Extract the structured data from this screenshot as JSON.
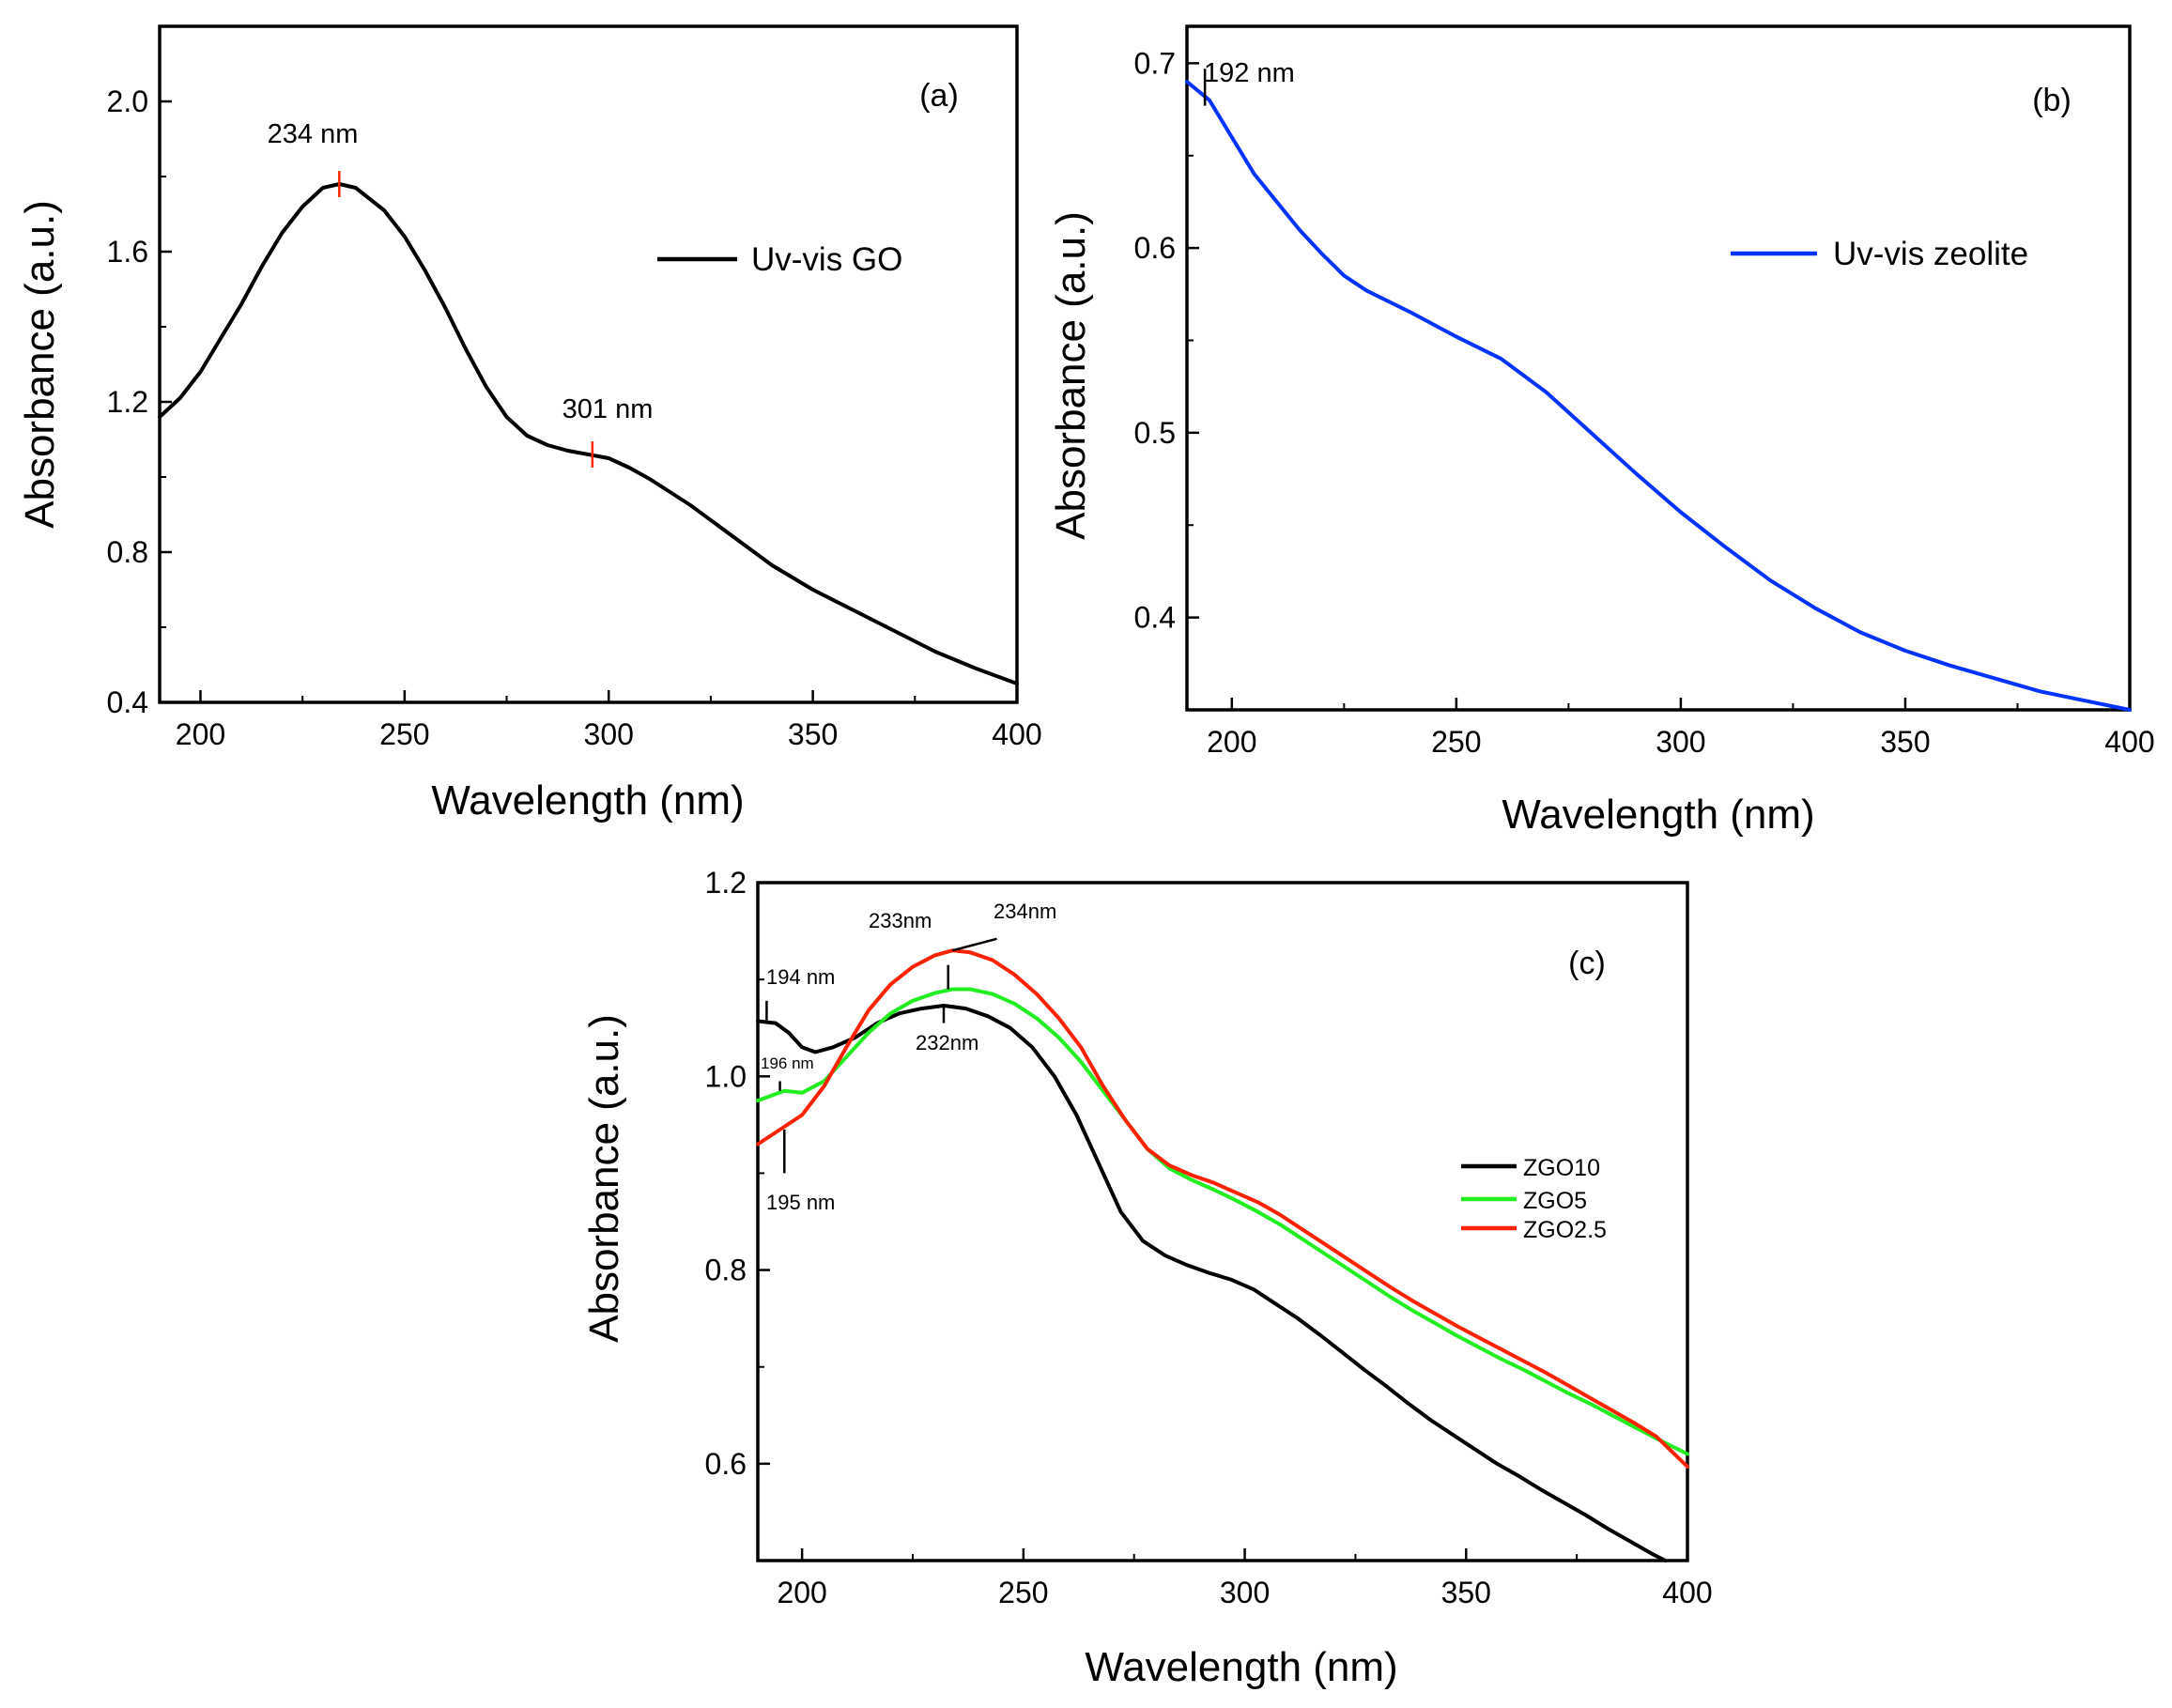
{
  "chart_data": [
    {
      "type": "line",
      "panel_label": "(a)",
      "xlabel": "Wavelength (nm)",
      "ylabel": "Absorbance (a.u.)",
      "xlim": [
        190,
        400
      ],
      "ylim": [
        0.4,
        2.2
      ],
      "xticks": [
        200,
        250,
        300,
        350,
        400
      ],
      "xtick_labels": [
        "200",
        "250",
        "300",
        "350",
        "400"
      ],
      "yticks": [
        0.4,
        0.8,
        1.2,
        1.6,
        2.0
      ],
      "ytick_labels": [
        "0.4",
        "0.8",
        "1.2",
        "1.6",
        "2.0"
      ],
      "grid": false,
      "legend_position": "top-right",
      "series": [
        {
          "name": "Uv-vis GO",
          "color": "#000000",
          "x": [
            190,
            195,
            200,
            205,
            210,
            215,
            220,
            225,
            230,
            234,
            238,
            245,
            250,
            255,
            260,
            265,
            270,
            275,
            280,
            285,
            290,
            295,
            300,
            305,
            310,
            315,
            320,
            330,
            340,
            350,
            360,
            370,
            380,
            390,
            400
          ],
          "y": [
            1.16,
            1.21,
            1.28,
            1.37,
            1.46,
            1.56,
            1.65,
            1.72,
            1.77,
            1.78,
            1.77,
            1.71,
            1.64,
            1.55,
            1.45,
            1.34,
            1.24,
            1.16,
            1.11,
            1.085,
            1.07,
            1.06,
            1.05,
            1.025,
            0.995,
            0.96,
            0.925,
            0.845,
            0.765,
            0.7,
            0.645,
            0.59,
            0.535,
            0.49,
            0.45
          ]
        }
      ],
      "annotations": [
        {
          "text": "234 nm",
          "x": 234,
          "y": 1.78,
          "marker_color": "#ff2a00"
        },
        {
          "text": "301 nm",
          "x": 296,
          "y": 1.06,
          "marker_color": "#ff2a00"
        }
      ]
    },
    {
      "type": "line",
      "panel_label": "(b)",
      "xlabel": "Wavelength (nm)",
      "ylabel": "Absorbance (a.u.)",
      "xlim": [
        190,
        400
      ],
      "ylim": [
        0.35,
        0.72
      ],
      "xticks": [
        200,
        250,
        300,
        350,
        400
      ],
      "xtick_labels": [
        "200",
        "250",
        "300",
        "350",
        "400"
      ],
      "yticks": [
        0.4,
        0.5,
        0.6,
        0.7
      ],
      "ytick_labels": [
        "0.4",
        "0.5",
        "0.6",
        "0.7"
      ],
      "grid": false,
      "legend_position": "top-right",
      "series": [
        {
          "name": "Uv-vis zeolite",
          "color": "#0033ff",
          "x": [
            190,
            195,
            200,
            205,
            210,
            215,
            220,
            225,
            230,
            240,
            250,
            260,
            270,
            280,
            290,
            300,
            310,
            320,
            330,
            340,
            350,
            360,
            370,
            380,
            390,
            400
          ],
          "y": [
            0.69,
            0.68,
            0.66,
            0.64,
            0.625,
            0.61,
            0.597,
            0.585,
            0.577,
            0.565,
            0.552,
            0.54,
            0.522,
            0.5,
            0.478,
            0.457,
            0.438,
            0.42,
            0.405,
            0.392,
            0.382,
            0.374,
            0.367,
            0.36,
            0.355,
            0.35
          ]
        }
      ],
      "annotations": [
        {
          "text": "192 nm",
          "x": 194,
          "y": 0.685,
          "marker_color": "#000000"
        }
      ]
    },
    {
      "type": "line",
      "panel_label": "(c)",
      "xlabel": "Wavelength (nm)",
      "ylabel": "Absorbance (a.u.)",
      "xlim": [
        190,
        400
      ],
      "ylim": [
        0.5,
        1.2
      ],
      "xticks": [
        200,
        250,
        300,
        350,
        400
      ],
      "xtick_labels": [
        "200",
        "250",
        "300",
        "350",
        "400"
      ],
      "yticks": [
        0.6,
        0.8,
        1.0,
        1.2
      ],
      "ytick_labels": [
        "0.6",
        "0.8",
        "1.0",
        "1.2"
      ],
      "grid": false,
      "legend_position": "right",
      "series": [
        {
          "name": "ZGO10",
          "color": "#000000",
          "x": [
            190,
            194,
            197,
            200,
            203,
            207,
            212,
            217,
            222,
            227,
            232,
            237,
            242,
            247,
            252,
            257,
            262,
            267,
            272,
            277,
            282,
            287,
            292,
            297,
            302,
            307,
            312,
            317,
            322,
            327,
            332,
            337,
            342,
            347,
            352,
            357,
            362,
            367,
            372,
            377,
            382,
            387,
            392,
            395
          ],
          "y": [
            1.057,
            1.055,
            1.045,
            1.03,
            1.025,
            1.03,
            1.04,
            1.055,
            1.065,
            1.07,
            1.073,
            1.07,
            1.062,
            1.05,
            1.03,
            1.0,
            0.96,
            0.91,
            0.86,
            0.83,
            0.815,
            0.805,
            0.797,
            0.79,
            0.78,
            0.765,
            0.75,
            0.733,
            0.715,
            0.697,
            0.68,
            0.662,
            0.645,
            0.63,
            0.615,
            0.6,
            0.587,
            0.573,
            0.56,
            0.547,
            0.533,
            0.52,
            0.507,
            0.5
          ]
        },
        {
          "name": "ZGO5",
          "color": "#22ee22",
          "x": [
            190,
            196,
            200,
            205,
            210,
            215,
            220,
            225,
            230,
            234,
            238,
            243,
            248,
            253,
            258,
            263,
            268,
            273,
            278,
            283,
            288,
            293,
            298,
            303,
            308,
            313,
            318,
            323,
            328,
            333,
            338,
            343,
            348,
            353,
            358,
            363,
            368,
            373,
            378,
            383,
            388,
            393,
            400
          ],
          "y": [
            0.975,
            0.985,
            0.983,
            0.995,
            1.02,
            1.045,
            1.065,
            1.078,
            1.086,
            1.09,
            1.09,
            1.085,
            1.075,
            1.06,
            1.04,
            1.015,
            0.985,
            0.955,
            0.925,
            0.905,
            0.893,
            0.883,
            0.872,
            0.86,
            0.847,
            0.832,
            0.817,
            0.802,
            0.787,
            0.772,
            0.758,
            0.745,
            0.732,
            0.72,
            0.708,
            0.697,
            0.685,
            0.673,
            0.662,
            0.65,
            0.638,
            0.626,
            0.61
          ]
        },
        {
          "name": "ZGO2.5",
          "color": "#ff2200",
          "x": [
            190,
            195,
            200,
            205,
            210,
            215,
            220,
            225,
            230,
            234,
            238,
            243,
            248,
            253,
            258,
            263,
            268,
            273,
            278,
            283,
            288,
            293,
            298,
            303,
            308,
            313,
            318,
            323,
            328,
            333,
            338,
            343,
            348,
            353,
            358,
            363,
            368,
            373,
            378,
            383,
            388,
            393,
            400
          ],
          "y": [
            0.93,
            0.945,
            0.96,
            0.99,
            1.03,
            1.068,
            1.095,
            1.113,
            1.125,
            1.13,
            1.128,
            1.12,
            1.105,
            1.085,
            1.06,
            1.03,
            0.99,
            0.955,
            0.925,
            0.908,
            0.898,
            0.89,
            0.88,
            0.87,
            0.857,
            0.842,
            0.827,
            0.812,
            0.797,
            0.782,
            0.768,
            0.755,
            0.742,
            0.73,
            0.718,
            0.706,
            0.694,
            0.681,
            0.668,
            0.655,
            0.642,
            0.628,
            0.597
          ]
        }
      ],
      "annotations": [
        {
          "text": "194 nm",
          "x": 192,
          "y": 1.057
        },
        {
          "text": "196 nm",
          "x": 195,
          "y": 0.985
        },
        {
          "text": "195 nm",
          "x": 196,
          "y": 0.945
        },
        {
          "text": "233nm",
          "x": 233,
          "y": 1.09
        },
        {
          "text": "234nm",
          "x": 234,
          "y": 1.13
        },
        {
          "text": "232nm",
          "x": 232,
          "y": 1.073
        }
      ]
    }
  ]
}
